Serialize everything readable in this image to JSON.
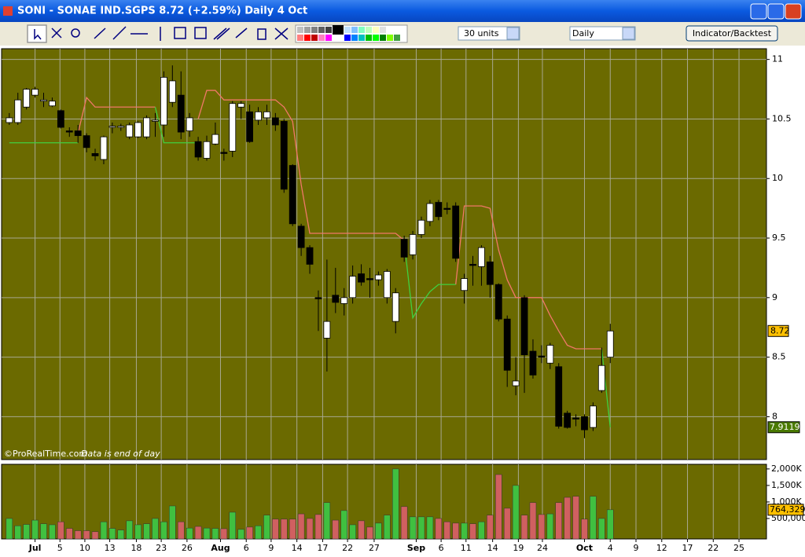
{
  "window": {
    "title": "SONI - SONAE IND.SGPS    8.72 (+2.59%)    Daily  4 Oct"
  },
  "toolbar": {
    "units": "30 units",
    "period": "Daily",
    "button": "Indicator/Backtest"
  },
  "footer": {
    "copyright": "©ProRealTime.com",
    "note": "Data is end of day"
  },
  "chart_data": [
    {
      "type": "candlestick",
      "background": "#6b6a00",
      "up_color": "#ffffff",
      "down_color": "#000000",
      "grid": true,
      "xlim": [
        -0.9,
        88.2
      ],
      "ylim": [
        7.64,
        11.09
      ],
      "yticks": [
        8,
        8.5,
        9,
        9.5,
        10,
        10.5,
        11
      ],
      "open": [
        10.47,
        10.47,
        10.6,
        10.7,
        10.65,
        10.61,
        10.57,
        10.4,
        10.4,
        10.36,
        10.21,
        10.16,
        10.43,
        10.43,
        10.35,
        10.35,
        10.35,
        10.48,
        10.45,
        10.64,
        10.7,
        10.4,
        10.31,
        10.17,
        10.29,
        10.22,
        10.23,
        10.6,
        10.56,
        10.49,
        10.51,
        10.51,
        10.48,
        10.11,
        9.6,
        9.42,
        9.0,
        8.66,
        9.02,
        8.95,
        9.0,
        9.2,
        9.16,
        9.15,
        9.0,
        8.8,
        9.49,
        9.36,
        9.53,
        9.64,
        9.8,
        9.75,
        9.77,
        9.06,
        9.28,
        9.26,
        9.3,
        9.11,
        8.82,
        8.26,
        9.0,
        8.55,
        8.51,
        8.45,
        8.42,
        8.03,
        7.99,
        8.0,
        7.91,
        8.22,
        8.5
      ],
      "high": [
        10.55,
        10.72,
        10.76,
        10.77,
        10.72,
        10.68,
        10.58,
        10.43,
        10.45,
        10.38,
        10.25,
        10.36,
        10.47,
        10.46,
        10.47,
        10.48,
        10.53,
        10.55,
        10.9,
        10.95,
        10.9,
        10.55,
        10.35,
        10.36,
        10.47,
        10.25,
        10.65,
        10.65,
        10.62,
        10.6,
        10.62,
        10.55,
        10.5,
        10.12,
        9.62,
        9.44,
        9.06,
        9.32,
        9.25,
        9.08,
        9.27,
        9.28,
        9.25,
        9.22,
        9.24,
        9.08,
        9.52,
        9.56,
        9.68,
        9.82,
        9.82,
        9.8,
        9.8,
        9.2,
        9.35,
        9.44,
        9.35,
        9.12,
        8.85,
        8.5,
        9.02,
        8.65,
        8.6,
        8.62,
        8.45,
        8.05,
        8.02,
        8.02,
        8.12,
        8.58,
        8.78
      ],
      "low": [
        10.45,
        10.45,
        10.58,
        10.68,
        10.6,
        10.6,
        10.42,
        10.35,
        10.3,
        10.22,
        10.15,
        10.12,
        10.38,
        10.4,
        10.33,
        10.34,
        10.33,
        10.35,
        10.35,
        10.6,
        10.33,
        10.35,
        10.15,
        10.15,
        10.28,
        10.15,
        10.18,
        10.5,
        10.3,
        10.45,
        10.45,
        10.4,
        9.88,
        9.6,
        9.35,
        9.2,
        8.72,
        8.38,
        8.87,
        8.85,
        8.95,
        9.1,
        9.0,
        9.1,
        8.95,
        8.7,
        9.3,
        9.32,
        9.5,
        9.6,
        9.65,
        9.7,
        9.3,
        8.95,
        9.1,
        9.1,
        9.0,
        8.8,
        8.25,
        8.18,
        8.2,
        8.32,
        8.45,
        8.4,
        7.9,
        7.9,
        7.92,
        7.82,
        7.88,
        8.2,
        8.45
      ],
      "close": [
        10.51,
        10.66,
        10.75,
        10.75,
        10.66,
        10.65,
        10.43,
        10.39,
        10.36,
        10.26,
        10.19,
        10.35,
        10.44,
        10.44,
        10.45,
        10.47,
        10.51,
        10.49,
        10.85,
        10.82,
        10.39,
        10.51,
        10.18,
        10.31,
        10.37,
        10.21,
        10.63,
        10.63,
        10.31,
        10.56,
        10.56,
        10.45,
        9.91,
        9.62,
        9.42,
        9.28,
        8.99,
        8.8,
        8.96,
        9.0,
        9.18,
        9.13,
        9.15,
        9.19,
        9.22,
        9.04,
        9.34,
        9.53,
        9.65,
        9.79,
        9.68,
        9.74,
        9.33,
        9.16,
        9.27,
        9.42,
        9.11,
        8.82,
        8.39,
        8.3,
        8.52,
        8.35,
        8.5,
        8.6,
        7.92,
        7.91,
        7.98,
        7.89,
        8.09,
        8.43,
        8.72
      ],
      "lines": [
        {
          "color": "#f07868",
          "values": [
            null,
            null,
            null,
            null,
            null,
            null,
            null,
            null,
            10.38,
            10.68,
            10.6,
            10.6,
            10.6,
            10.6,
            10.6,
            10.6,
            10.6,
            10.6,
            null,
            null,
            null,
            null,
            10.5,
            10.74,
            10.74,
            10.66,
            10.66,
            10.66,
            10.66,
            10.66,
            10.66,
            10.66,
            10.6,
            10.48,
            9.95,
            9.54,
            9.54,
            9.54,
            9.54,
            9.54,
            9.54,
            9.54,
            9.54,
            9.54,
            9.54,
            9.54,
            9.48,
            null,
            null,
            null,
            null,
            null,
            9.11,
            9.77,
            9.77,
            9.77,
            9.75,
            9.4,
            9.15,
            9.0,
            9.0,
            9.0,
            9.0,
            8.85,
            8.72,
            8.6,
            8.57,
            8.57,
            8.57,
            8.57,
            null
          ]
        },
        {
          "color": "#40d040",
          "values": [
            10.3,
            10.3,
            10.3,
            10.3,
            10.3,
            10.3,
            10.3,
            10.3,
            10.3,
            null,
            null,
            null,
            null,
            null,
            null,
            null,
            null,
            10.6,
            10.3,
            10.3,
            10.3,
            10.3,
            10.3,
            null,
            null,
            null,
            null,
            null,
            null,
            null,
            null,
            null,
            null,
            null,
            null,
            null,
            null,
            null,
            null,
            null,
            null,
            null,
            null,
            null,
            null,
            null,
            9.47,
            8.83,
            8.95,
            9.05,
            9.11,
            9.11,
            9.11,
            null,
            null,
            null,
            null,
            null,
            null,
            null,
            null,
            null,
            null,
            null,
            null,
            null,
            null,
            null,
            null,
            8.57,
            7.9119
          ]
        }
      ]
    },
    {
      "type": "bar",
      "background": "#6b6a00",
      "up_color": "#40c040",
      "down_color": "#d06060",
      "xlim": [
        -0.9,
        88.2
      ],
      "ylim": [
        -119000,
        2140000
      ],
      "yticks": [
        {
          "value": 500000,
          "label": "500,000"
        },
        {
          "value": 1000000,
          "label": "1,000K"
        },
        {
          "value": 1500000,
          "label": "1,500K"
        },
        {
          "value": 2000000,
          "label": "2,000K"
        }
      ],
      "xticks": [
        {
          "value": 3.0,
          "label": "Jul"
        },
        {
          "value": 5.9,
          "label": "5"
        },
        {
          "value": 8.8,
          "label": "10"
        },
        {
          "value": 11.7,
          "label": "13"
        },
        {
          "value": 14.8,
          "label": "18"
        },
        {
          "value": 17.7,
          "label": "23"
        },
        {
          "value": 20.7,
          "label": "26"
        },
        {
          "value": 24.6,
          "label": "Aug"
        },
        {
          "value": 27.6,
          "label": "6"
        },
        {
          "value": 30.5,
          "label": "9"
        },
        {
          "value": 33.5,
          "label": "14"
        },
        {
          "value": 36.5,
          "label": "17"
        },
        {
          "value": 39.4,
          "label": "22"
        },
        {
          "value": 42.5,
          "label": "27"
        },
        {
          "value": 47.4,
          "label": "Sep"
        },
        {
          "value": 50.3,
          "label": "6"
        },
        {
          "value": 53.2,
          "label": "11"
        },
        {
          "value": 56.3,
          "label": "14"
        },
        {
          "value": 59.3,
          "label": "19"
        },
        {
          "value": 62.1,
          "label": "24"
        },
        {
          "value": 67.0,
          "label": "Oct"
        },
        {
          "value": 70.0,
          "label": "4"
        },
        {
          "value": 73.0,
          "label": "9"
        },
        {
          "value": 76.0,
          "label": "12"
        },
        {
          "value": 79.0,
          "label": "17"
        },
        {
          "value": 82.0,
          "label": "22"
        },
        {
          "value": 85.0,
          "label": "25"
        }
      ],
      "values": [
        500000,
        280000,
        320000,
        450000,
        340000,
        310000,
        400000,
        200000,
        130000,
        130000,
        100000,
        400000,
        200000,
        150000,
        430000,
        310000,
        340000,
        500000,
        400000,
        880000,
        400000,
        210000,
        260000,
        210000,
        200000,
        190000,
        690000,
        170000,
        240000,
        280000,
        600000,
        480000,
        480000,
        480000,
        640000,
        500000,
        620000,
        980000,
        450000,
        740000,
        310000,
        430000,
        240000,
        360000,
        600000,
        2000000,
        860000,
        550000,
        550000,
        550000,
        500000,
        400000,
        360000,
        360000,
        340000,
        400000,
        600000,
        1830000,
        810000,
        1500000,
        600000,
        980000,
        620000,
        640000,
        980000,
        1140000,
        1170000,
        480000,
        1170000,
        500000,
        764329
      ],
      "last_value_label": "764,329"
    }
  ]
}
